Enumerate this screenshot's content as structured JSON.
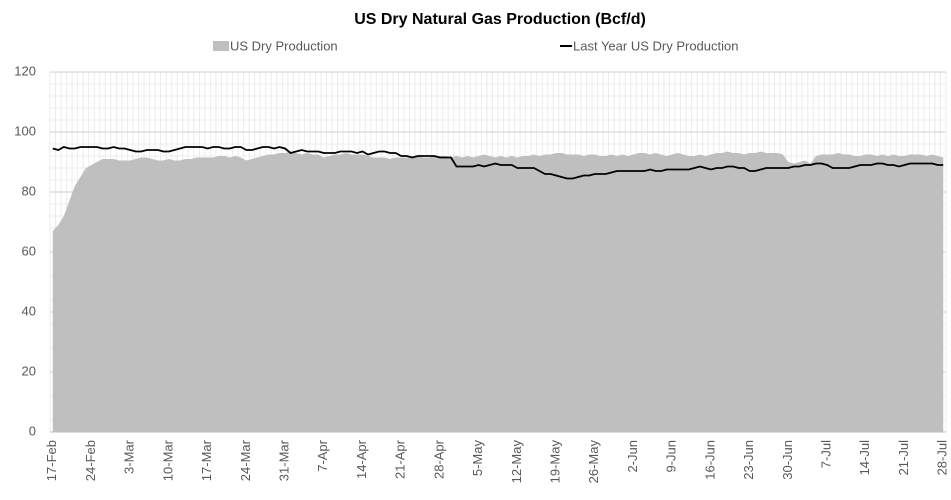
{
  "chart_data": {
    "type": "area",
    "title": "US Dry Natural Gas Production (Bcf/d)",
    "categories": [
      "17-Feb",
      null,
      null,
      null,
      null,
      null,
      null,
      "24-Feb",
      null,
      null,
      null,
      null,
      null,
      null,
      "3-Mar",
      null,
      null,
      null,
      null,
      null,
      null,
      "10-Mar",
      null,
      null,
      null,
      null,
      null,
      null,
      "17-Mar",
      null,
      null,
      null,
      null,
      null,
      null,
      "24-Mar",
      null,
      null,
      null,
      null,
      null,
      null,
      "31-Mar",
      null,
      null,
      null,
      null,
      null,
      null,
      "7-Apr",
      null,
      null,
      null,
      null,
      null,
      null,
      "14-Apr",
      null,
      null,
      null,
      null,
      null,
      null,
      "21-Apr",
      null,
      null,
      null,
      null,
      null,
      null,
      "28-Apr",
      null,
      null,
      null,
      null,
      null,
      null,
      "5-May",
      null,
      null,
      null,
      null,
      null,
      null,
      "12-May",
      null,
      null,
      null,
      null,
      null,
      null,
      "19-May",
      null,
      null,
      null,
      null,
      null,
      null,
      "26-May",
      null,
      null,
      null,
      null,
      null,
      null,
      "2-Jun",
      null,
      null,
      null,
      null,
      null,
      null,
      "9-Jun",
      null,
      null,
      null,
      null,
      null,
      null,
      "16-Jun",
      null,
      null,
      null,
      null,
      null,
      null,
      "23-Jun",
      null,
      null,
      null,
      null,
      null,
      null,
      "30-Jun",
      null,
      null,
      null,
      null,
      null,
      null,
      "7-Jul",
      null,
      null,
      null,
      null,
      null,
      null,
      "14-Jul",
      null,
      null,
      null,
      null,
      null,
      null,
      "21-Jul",
      null,
      null,
      null,
      null,
      null,
      null,
      "28-Jul"
    ],
    "series": [
      {
        "name": "US Dry Production",
        "type": "area",
        "color": "#bfbfbf",
        "values": [
          67,
          69,
          72,
          77,
          82,
          85,
          88,
          89,
          90,
          91,
          91,
          91,
          90.5,
          90.5,
          90.5,
          91,
          91.5,
          91.5,
          91,
          90.5,
          90.5,
          91,
          90.5,
          90.5,
          91,
          91,
          91.5,
          91.5,
          91.5,
          91.5,
          92,
          92,
          91.5,
          92,
          91.5,
          90.5,
          91,
          91.5,
          92,
          92.5,
          92.5,
          93,
          93,
          93.5,
          93,
          92.5,
          93,
          92.5,
          92.5,
          91.5,
          92,
          92.5,
          92.5,
          93,
          92.5,
          92.5,
          92.5,
          92,
          91.5,
          91.5,
          91.5,
          91,
          91.5,
          91.5,
          91.5,
          91.5,
          92,
          91.5,
          91.5,
          92,
          92,
          92,
          91.5,
          92,
          91.5,
          92,
          91.5,
          92,
          92.5,
          92,
          91.5,
          92,
          91.5,
          92,
          91.5,
          92,
          92,
          92.5,
          92,
          92.5,
          92.5,
          93,
          93,
          92.5,
          92.5,
          92.5,
          92,
          92.5,
          92.5,
          92,
          92,
          92.5,
          92,
          92.5,
          92,
          92.5,
          93,
          93,
          92.5,
          93,
          92.5,
          92,
          92.5,
          93,
          92.5,
          92,
          92,
          92.5,
          92,
          92.5,
          93,
          93,
          93.5,
          93,
          93,
          92.5,
          93,
          93,
          93.5,
          93,
          93,
          93,
          92.5,
          90,
          89.5,
          90,
          90.5,
          89.5,
          92,
          92.5,
          92.5,
          92.5,
          93,
          92.5,
          92.5,
          92,
          92,
          92.5,
          92.5,
          92,
          92.5,
          92,
          92.5,
          92,
          92,
          92.5,
          92.5,
          92.5,
          92,
          92.5,
          92,
          91.5
        ]
      },
      {
        "name": "Last Year US Dry Production",
        "type": "line",
        "color": "#000000",
        "values": [
          94.5,
          94,
          95,
          94.5,
          94.5,
          95,
          95,
          95,
          95,
          94.5,
          94.5,
          95,
          94.5,
          94.5,
          94,
          93.5,
          93.5,
          94,
          94,
          94,
          93.5,
          93.5,
          94,
          94.5,
          95,
          95,
          95,
          95,
          94.5,
          95,
          95,
          94.5,
          94.5,
          95,
          95,
          94,
          94,
          94.5,
          95,
          95,
          94.5,
          95,
          94.5,
          93,
          93.5,
          94,
          93.5,
          93.5,
          93.5,
          93,
          93,
          93,
          93.5,
          93.5,
          93.5,
          93,
          93.5,
          92.5,
          93,
          93.5,
          93.5,
          93,
          93,
          92,
          92,
          91.5,
          92,
          92,
          92,
          92,
          91.5,
          91.5,
          91.5,
          88.5,
          88.5,
          88.5,
          88.5,
          89,
          88.5,
          89,
          89.5,
          89,
          89,
          89,
          88,
          88,
          88,
          88,
          87,
          86,
          86,
          85.5,
          85,
          84.5,
          84.5,
          85,
          85.5,
          85.5,
          86,
          86,
          86,
          86.5,
          87,
          87,
          87,
          87,
          87,
          87,
          87.5,
          87,
          87,
          87.5,
          87.5,
          87.5,
          87.5,
          87.5,
          88,
          88.5,
          88,
          87.5,
          88,
          88,
          88.5,
          88.5,
          88,
          88,
          87,
          87,
          87.5,
          88,
          88,
          88,
          88,
          88,
          88.5,
          88.5,
          89,
          89,
          89.5,
          89.5,
          89,
          88,
          88,
          88,
          88,
          88.5,
          89,
          89,
          89,
          89.5,
          89.5,
          89,
          89,
          88.5,
          89,
          89.5,
          89.5,
          89.5,
          89.5,
          89.5,
          89,
          89
        ]
      }
    ],
    "ylim": [
      0,
      120
    ],
    "yticks": [
      0,
      20,
      40,
      60,
      80,
      100,
      120
    ],
    "grid": true,
    "legend": "top"
  }
}
